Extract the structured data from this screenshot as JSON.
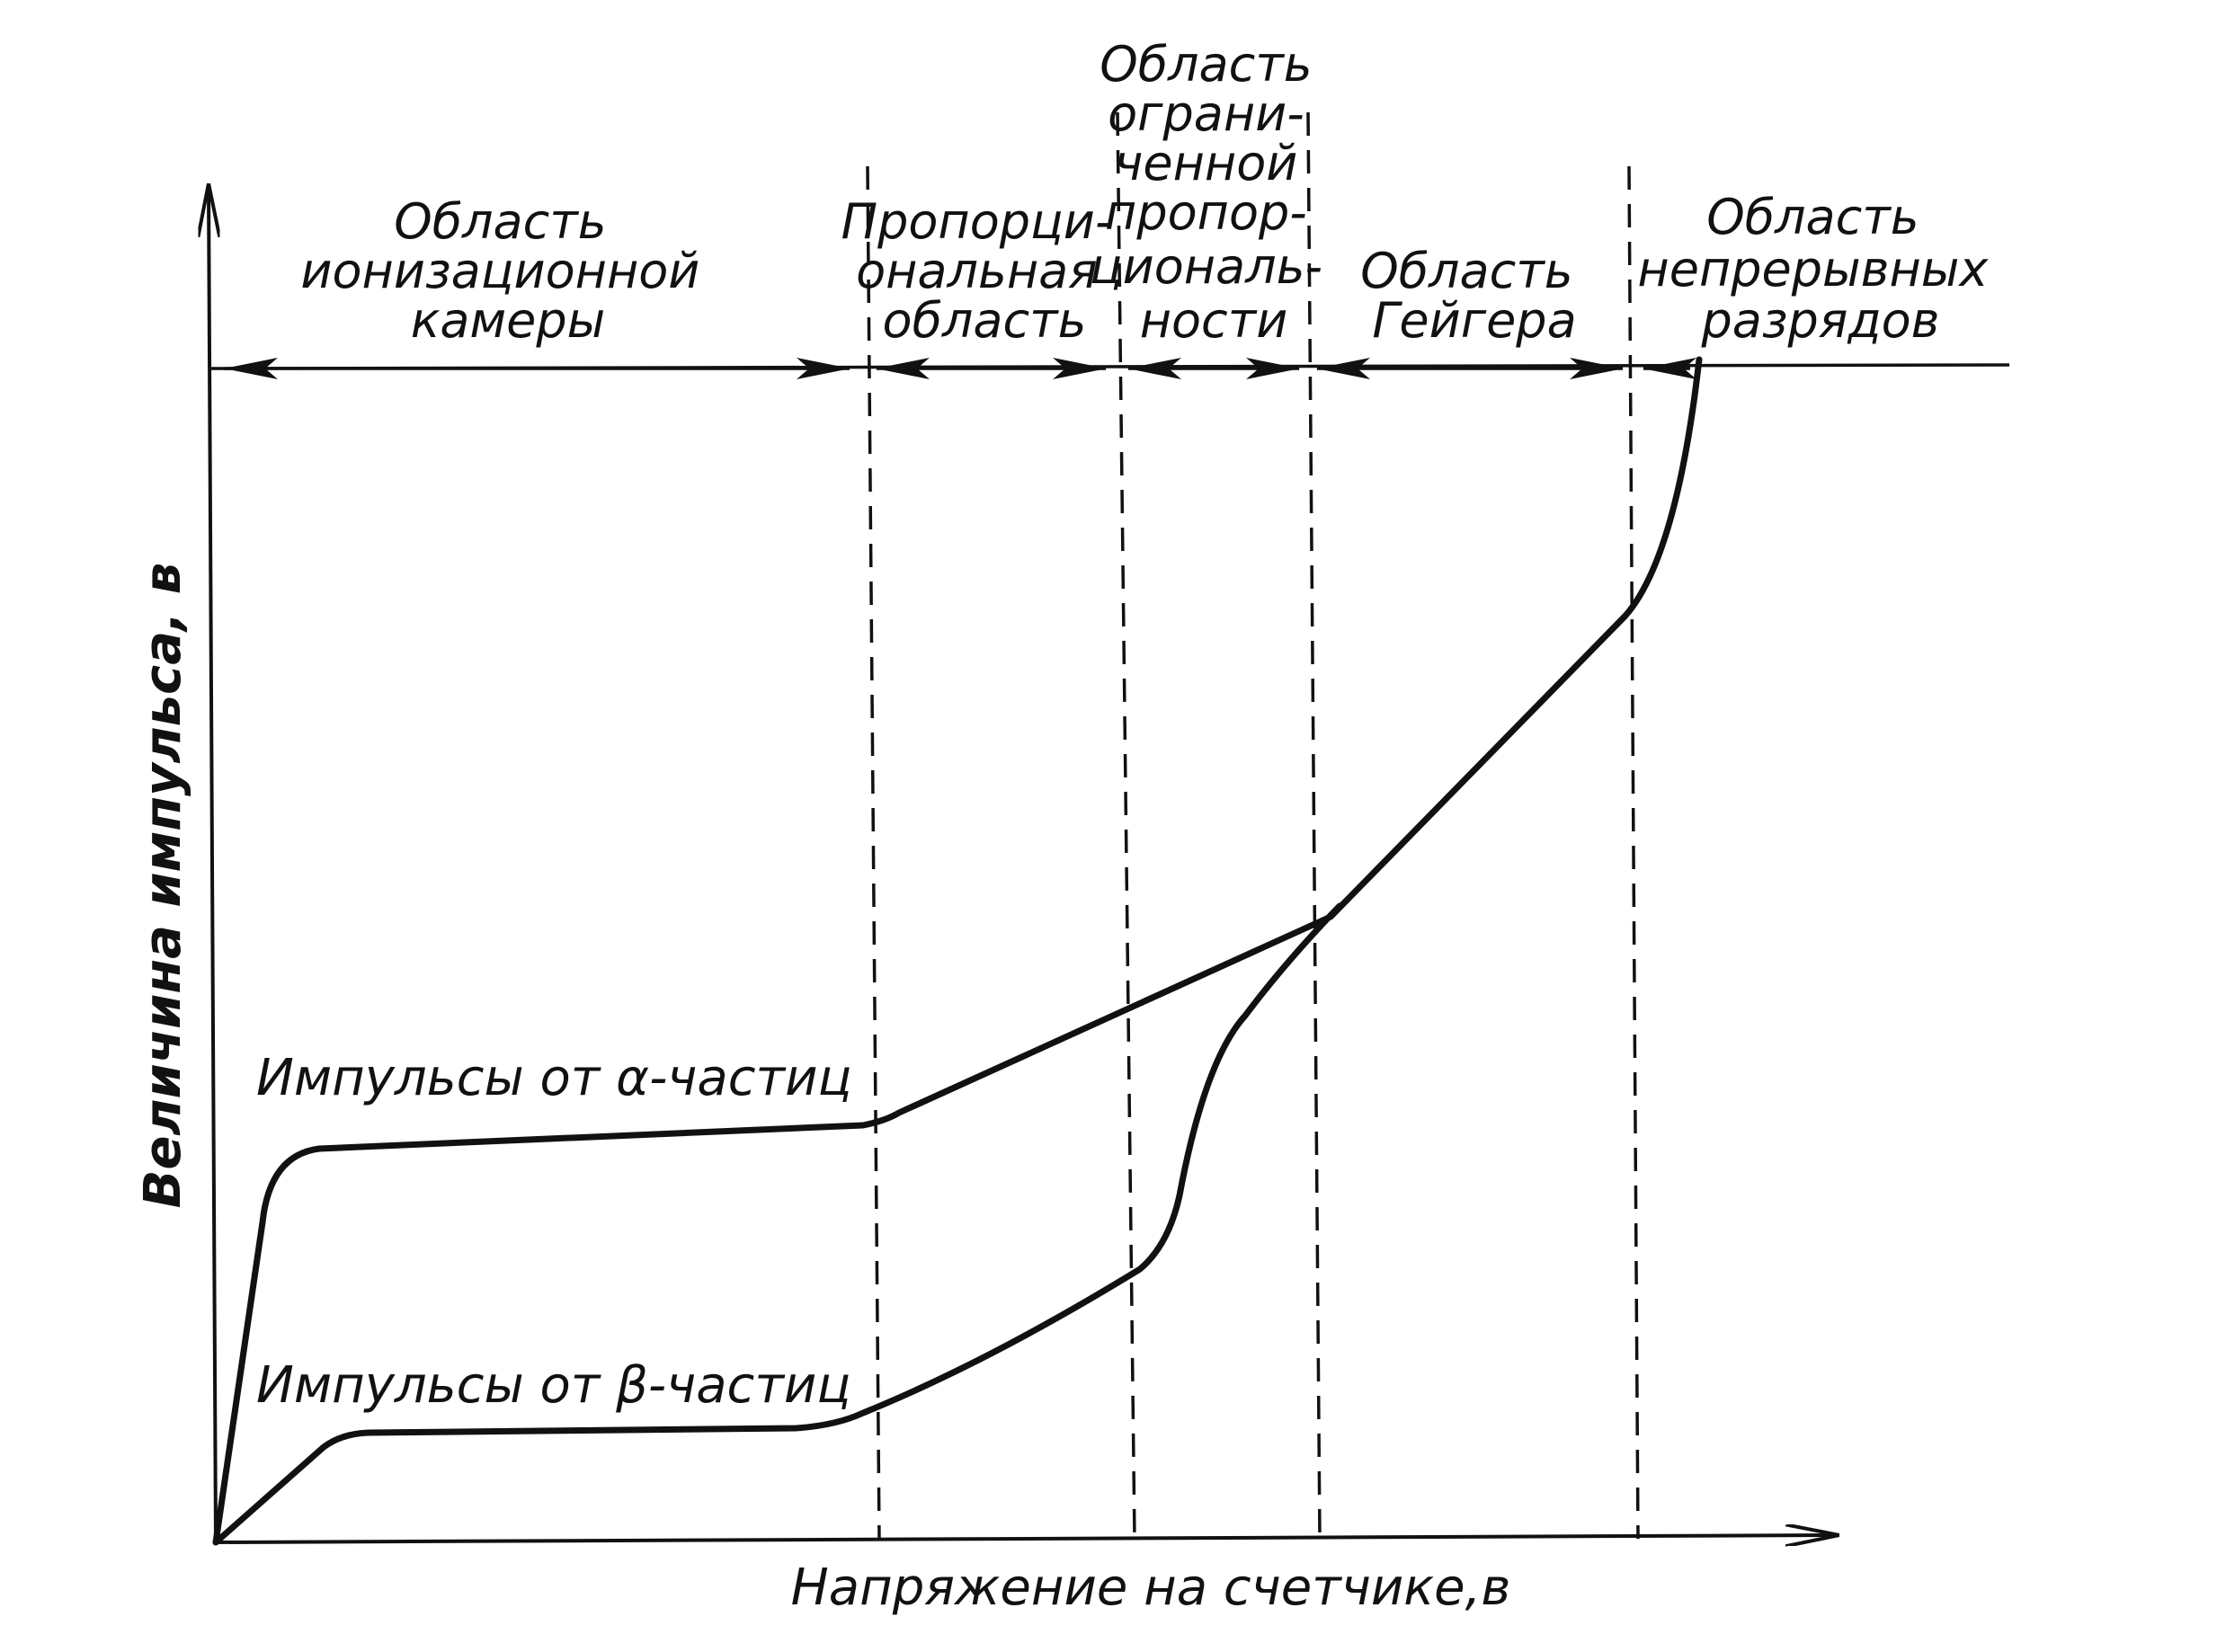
{
  "axes": {
    "x_title": "Напряжение на счетчике,в",
    "y_title": "Величина импульса, в"
  },
  "regions": [
    {
      "id": "ion",
      "lines": [
        "Область",
        "ионизационной",
        "камеры"
      ]
    },
    {
      "id": "prop",
      "lines": [
        "Пропорци-",
        "ональная",
        "область"
      ]
    },
    {
      "id": "limited",
      "lines": [
        "Область",
        "ограни-",
        "ченной",
        "пропор-",
        "циональ-",
        "ности"
      ]
    },
    {
      "id": "geiger",
      "lines": [
        "Область",
        "Гейгера"
      ]
    },
    {
      "id": "continuous",
      "lines": [
        "Область",
        "непрерывных",
        "разрядов"
      ]
    }
  ],
  "curves": {
    "alpha_label": "Импульсы от α-частиц",
    "beta_label": "Импульсы от β-частиц"
  }
}
